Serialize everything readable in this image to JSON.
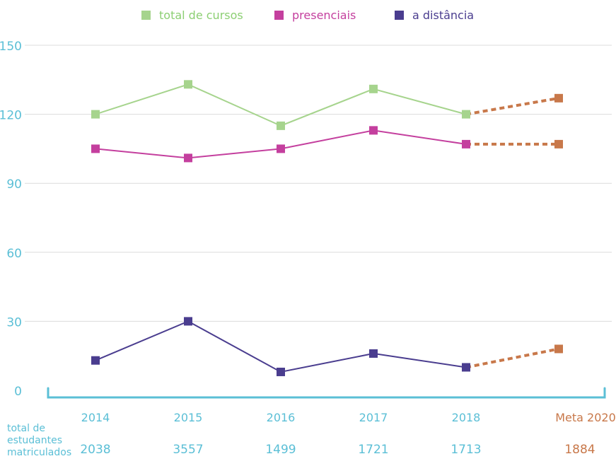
{
  "chart_data": {
    "type": "line",
    "categories": [
      "2014",
      "2015",
      "2016",
      "2017",
      "2018",
      "Meta 2020"
    ],
    "series": [
      {
        "name": "total de cursos",
        "color": "#a6d48d",
        "values": [
          120,
          133,
          115,
          131,
          120,
          127
        ]
      },
      {
        "name": "presenciais",
        "color": "#c43f9e",
        "values": [
          105,
          101,
          105,
          113,
          107,
          107
        ]
      },
      {
        "name": "a distância",
        "color": "#4a3d8f",
        "values": [
          13,
          30,
          8,
          16,
          10,
          18
        ]
      }
    ],
    "projection_color": "#c8784a",
    "projection_from_index": 4,
    "ylim": [
      0,
      150
    ],
    "yticks": [
      "0",
      "30",
      "60",
      "90",
      "120",
      "150"
    ],
    "axis_color": "#5bbfd6",
    "grid": true,
    "legend_position": "top-center",
    "footer": {
      "label": [
        "total de",
        "estudantes",
        "matriculados"
      ],
      "values": [
        "2038",
        "3557",
        "1499",
        "1721",
        "1713",
        "1884"
      ]
    }
  }
}
